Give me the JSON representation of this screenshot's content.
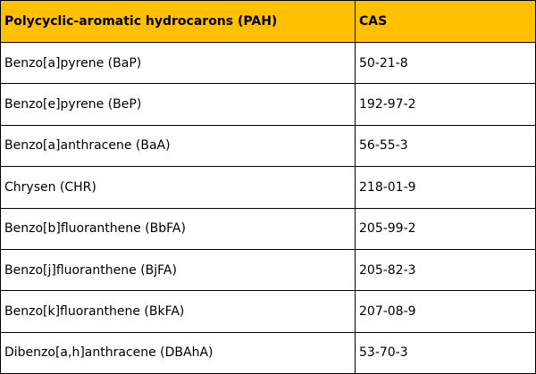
{
  "table": {
    "headers": [
      "Polycyclic-aromatic hydrocarons (PAH)",
      "CAS"
    ],
    "rows": [
      [
        "Benzo[a]pyrene (BaP)",
        "50-21-8"
      ],
      [
        "Benzo[e]pyrene (BeP)",
        "192-97-2"
      ],
      [
        "Benzo[a]anthracene (BaA)",
        "56-55-3"
      ],
      [
        "Chrysen (CHR)",
        "218-01-9"
      ],
      [
        "Benzo[b]fluoranthene (BbFA)",
        "205-99-2"
      ],
      [
        "Benzo[j]fluoranthene (BjFA)",
        "205-82-3"
      ],
      [
        "Benzo[k]fluoranthene (BkFA)",
        "207-08-9"
      ],
      [
        "Dibenzo[a,h]anthracene (DBAhA)",
        "53-70-3"
      ]
    ]
  }
}
